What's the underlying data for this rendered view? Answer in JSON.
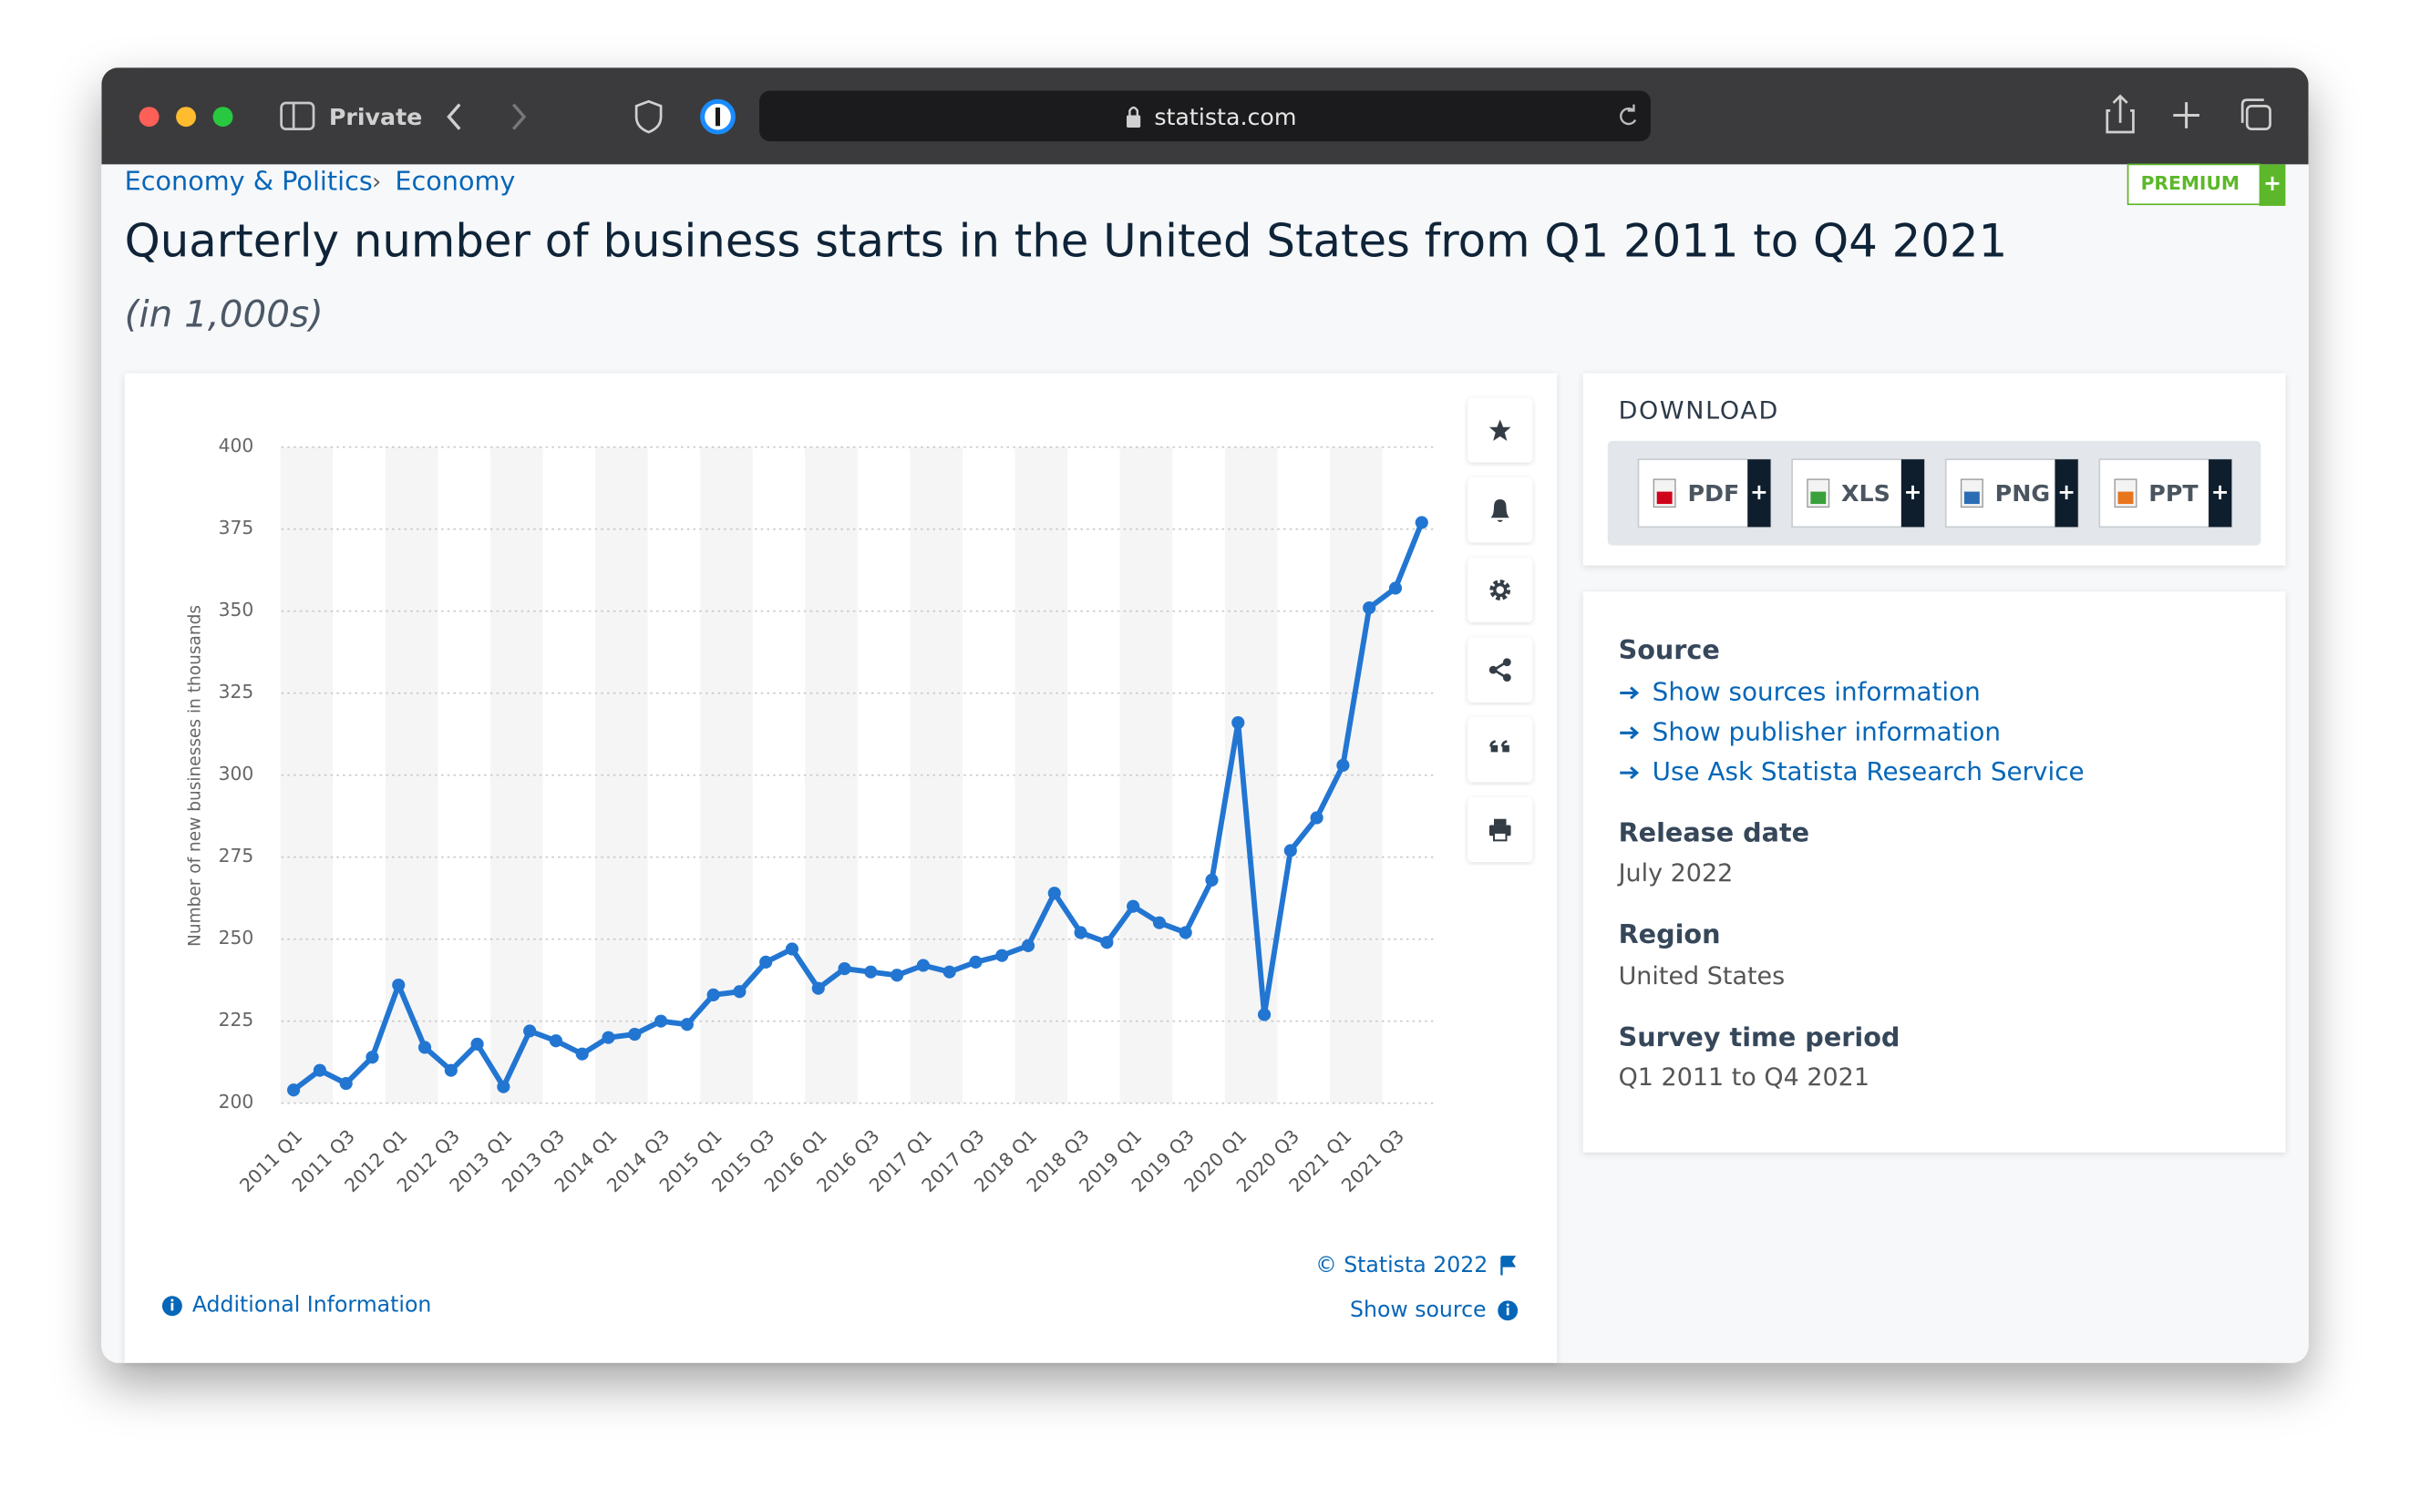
{
  "browser": {
    "mode": "Private",
    "url": "statista.com"
  },
  "breadcrumbs": [
    "Economy & Politics",
    "Economy"
  ],
  "breadcrumb_separator": "›",
  "badge": "PREMIUM",
  "plus": "+",
  "chart_data": {
    "type": "line",
    "title": "Quarterly number of business starts in the United States from Q1 2011 to Q4 2021",
    "subtitle": "(in 1,000s)",
    "y_label": "Number of new businesses in thousands",
    "categories": [
      "2011 Q1",
      null,
      "2011 Q3",
      null,
      "2012 Q1",
      null,
      "2012 Q3",
      null,
      "2013 Q1",
      null,
      "2013 Q3",
      null,
      "2014 Q1",
      null,
      "2014 Q3",
      null,
      "2015 Q1",
      null,
      "2015 Q3",
      null,
      "2016 Q1",
      null,
      "2016 Q3",
      null,
      "2017 Q1",
      null,
      "2017 Q3",
      null,
      "2018 Q1",
      null,
      "2018 Q3",
      null,
      "2019 Q1",
      null,
      "2019 Q3",
      null,
      "2020 Q1",
      null,
      "2020 Q3",
      null,
      "2021 Q1",
      null,
      "2021 Q3",
      null
    ],
    "values": [
      204,
      210,
      206,
      214,
      236,
      217,
      210,
      218,
      205,
      222,
      219,
      215,
      220,
      221,
      225,
      224,
      233,
      234,
      243,
      247,
      235,
      241,
      240,
      239,
      242,
      240,
      243,
      245,
      248,
      264,
      252,
      249,
      260,
      255,
      252,
      268,
      316,
      227,
      277,
      287,
      303,
      351,
      357,
      377
    ],
    "color": "#2276d2",
    "ylim": [
      200,
      400
    ],
    "yticks": [
      200,
      225,
      250,
      275,
      300,
      325,
      350,
      375,
      400
    ],
    "grid": true
  },
  "chart_footer": {
    "credit": "© Statista 2022",
    "show_source": "Show source",
    "additional": "Additional Information"
  },
  "download": {
    "heading": "DOWNLOAD",
    "formats": [
      "PDF",
      "XLS",
      "PNG",
      "PPT"
    ]
  },
  "details": {
    "source_heading": "Source",
    "source_links": [
      "Show sources information",
      "Show publisher information",
      "Use Ask Statista Research Service"
    ],
    "release_heading": "Release date",
    "release": "July 2022",
    "region_heading": "Region",
    "region": "United States",
    "period_heading": "Survey time period",
    "period": "Q1 2011 to Q4 2021"
  }
}
